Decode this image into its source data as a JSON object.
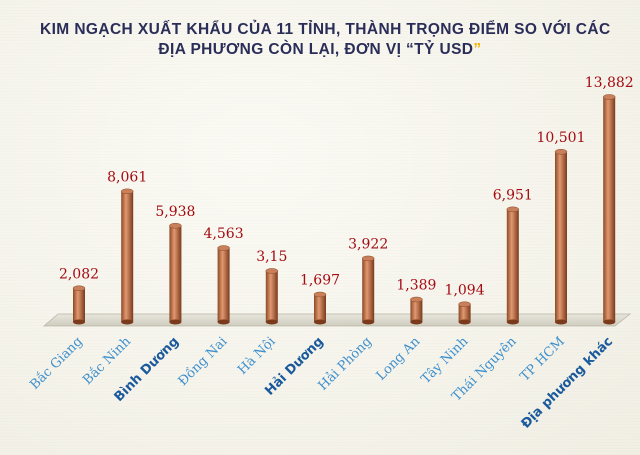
{
  "title": {
    "line1": "KIM NGẠCH XUẤT KHẨU CỦA 11 TỈNH, THÀNH TRỌNG ĐIỂM SO VỚI CÁC",
    "line2": "ĐỊA PHƯƠNG CÒN LẠI, ĐƠN VỊ “TỶ USD",
    "line2_end": "”"
  },
  "colors": {
    "bar_fill": "#b06030",
    "bar_highlight": "#e29870",
    "value_label": "#a40b13",
    "category_label": "#3e8fcd",
    "category_label_bold": "#1a5a9c",
    "title": "#2a2d58"
  },
  "chart_data": {
    "type": "bar",
    "bar_style": "3d-cylinder",
    "categories": [
      "Bắc Giang",
      "Bắc Ninh",
      "Bình Dương",
      "Đồng Nai",
      "Hà Nội",
      "Hải Dương",
      "Hải Phòng",
      "Long An",
      "Tây Ninh",
      "Thái Nguyên",
      "TP HCM",
      "Địa phương khác"
    ],
    "values": [
      2.082,
      8.061,
      5.938,
      4.563,
      3.15,
      1.697,
      3.922,
      1.389,
      1.094,
      6.951,
      10.501,
      13.882
    ],
    "value_labels": [
      "2,082",
      "8,061",
      "5,938",
      "4,563",
      "3,15",
      "1,697",
      "3,922",
      "1,389",
      "1,094",
      "6,951",
      "10,501",
      "13,882"
    ],
    "bold_categories": [
      "Bình Dương",
      "Hải Dương",
      "Địa phương khác"
    ],
    "ylim": [
      0,
      14
    ],
    "grid": false,
    "legend": "none"
  }
}
